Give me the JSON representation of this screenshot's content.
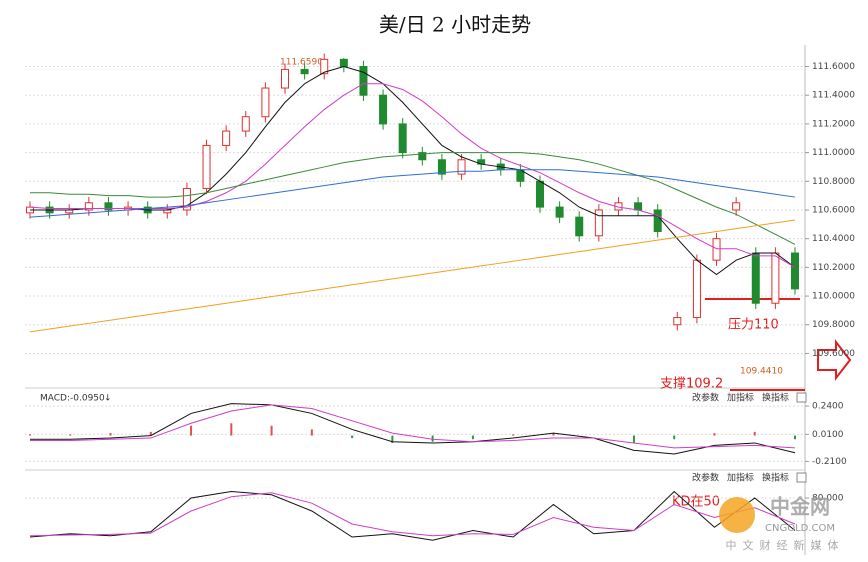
{
  "chart_data": {
    "type": "candlestick",
    "title": "美/日 2 小时走势",
    "ylim": [
      109.38,
      111.75
    ],
    "yticks": [
      {
        "value": 111.6,
        "label": "111.6000"
      },
      {
        "value": 111.4,
        "label": "111.4000"
      },
      {
        "value": 111.2,
        "label": "111.2000"
      },
      {
        "value": 111.0,
        "label": "111.0000"
      },
      {
        "value": 110.8,
        "label": "110.8000"
      },
      {
        "value": 110.6,
        "label": "110.6000"
      },
      {
        "value": 110.4,
        "label": "110.4000"
      },
      {
        "value": 110.2,
        "label": "110.2000"
      },
      {
        "value": 110.0,
        "label": "110.0000"
      },
      {
        "value": 109.8,
        "label": "109.8000"
      },
      {
        "value": 109.6,
        "label": "109.6000"
      }
    ],
    "grid": true,
    "candles": {
      "open": [
        110.58,
        110.62,
        110.58,
        110.6,
        110.65,
        110.6,
        110.62,
        110.58,
        110.6,
        110.75,
        111.05,
        111.15,
        111.25,
        111.45,
        111.58,
        111.55,
        111.65,
        111.6,
        111.4,
        111.2,
        111.0,
        110.95,
        110.85,
        110.95,
        110.92,
        110.88,
        110.8,
        110.62,
        110.55,
        110.42,
        110.6,
        110.65,
        110.6,
        109.8,
        109.85,
        110.25,
        110.6,
        110.3,
        109.95,
        110.3
      ],
      "high": [
        110.66,
        110.66,
        110.64,
        110.69,
        110.69,
        110.66,
        110.66,
        110.64,
        110.79,
        111.09,
        111.19,
        111.29,
        111.49,
        111.62,
        111.62,
        111.69,
        111.66,
        111.64,
        111.44,
        111.24,
        111.04,
        110.99,
        110.99,
        110.99,
        110.96,
        110.92,
        110.84,
        110.66,
        110.59,
        110.64,
        110.69,
        110.69,
        110.64,
        109.89,
        110.29,
        110.44,
        110.69,
        110.34,
        110.34,
        110.34
      ],
      "low": [
        110.54,
        110.54,
        110.54,
        110.56,
        110.56,
        110.56,
        110.54,
        110.54,
        110.56,
        110.71,
        111.01,
        111.11,
        111.21,
        111.41,
        111.51,
        111.51,
        111.56,
        111.36,
        111.16,
        110.96,
        110.91,
        110.81,
        110.81,
        110.88,
        110.84,
        110.76,
        110.58,
        110.51,
        110.38,
        110.38,
        110.56,
        110.56,
        110.41,
        109.76,
        109.81,
        110.21,
        110.56,
        109.91,
        109.91,
        110.01
      ],
      "close": [
        110.62,
        110.58,
        110.6,
        110.65,
        110.6,
        110.62,
        110.58,
        110.6,
        110.75,
        111.05,
        111.15,
        111.25,
        111.45,
        111.58,
        111.55,
        111.65,
        111.6,
        111.4,
        111.2,
        111.0,
        110.95,
        110.85,
        110.95,
        110.92,
        110.88,
        110.8,
        110.62,
        110.55,
        110.42,
        110.6,
        110.65,
        110.6,
        110.45,
        109.85,
        110.25,
        110.4,
        110.65,
        109.95,
        110.3,
        110.05
      ],
      "up_color": "#e03030",
      "down_color": "#1f8a2e"
    },
    "series": [
      {
        "color": "#111111",
        "values": [
          110.6,
          110.6,
          110.6,
          110.61,
          110.61,
          110.61,
          110.6,
          110.6,
          110.63,
          110.72,
          110.85,
          111.0,
          111.18,
          111.35,
          111.48,
          111.56,
          111.6,
          111.56,
          111.48,
          111.35,
          111.2,
          111.05,
          110.97,
          110.92,
          110.9,
          110.88,
          110.8,
          110.72,
          110.62,
          110.56,
          110.56,
          110.56,
          110.56,
          110.4,
          110.25,
          110.15,
          110.25,
          110.3,
          110.3,
          110.2
        ]
      },
      {
        "color": "#d23cc8",
        "values": [
          110.62,
          110.61,
          110.61,
          110.61,
          110.61,
          110.61,
          110.61,
          110.61,
          110.62,
          110.66,
          110.72,
          110.8,
          110.92,
          111.05,
          111.18,
          111.3,
          111.4,
          111.48,
          111.48,
          111.44,
          111.36,
          111.25,
          111.13,
          111.03,
          110.96,
          110.91,
          110.86,
          110.79,
          110.72,
          110.66,
          110.62,
          110.6,
          110.56,
          110.48,
          110.4,
          110.33,
          110.33,
          110.28,
          110.28,
          110.2
        ]
      },
      {
        "color": "#3a8a3a",
        "values": [
          110.72,
          110.72,
          110.71,
          110.71,
          110.7,
          110.7,
          110.69,
          110.69,
          110.7,
          110.72,
          110.75,
          110.78,
          110.81,
          110.84,
          110.87,
          110.9,
          110.93,
          110.95,
          110.97,
          110.98,
          110.99,
          111.0,
          111.0,
          111.0,
          111.0,
          111.0,
          110.99,
          110.97,
          110.95,
          110.92,
          110.88,
          110.84,
          110.8,
          110.74,
          110.68,
          110.62,
          110.57,
          110.5,
          110.43,
          110.36
        ]
      },
      {
        "color": "#2f6fd0",
        "values": [
          110.55,
          110.56,
          110.57,
          110.58,
          110.59,
          110.6,
          110.61,
          110.62,
          110.63,
          110.65,
          110.67,
          110.69,
          110.71,
          110.73,
          110.75,
          110.77,
          110.79,
          110.81,
          110.83,
          110.84,
          110.85,
          110.86,
          110.87,
          110.87,
          110.88,
          110.88,
          110.88,
          110.88,
          110.87,
          110.86,
          110.85,
          110.84,
          110.83,
          110.81,
          110.79,
          110.77,
          110.75,
          110.73,
          110.71,
          110.69
        ]
      },
      {
        "color": "#f0a020",
        "values": [
          109.75,
          109.77,
          109.79,
          109.81,
          109.83,
          109.85,
          109.87,
          109.89,
          109.91,
          109.93,
          109.95,
          109.97,
          109.99,
          110.01,
          110.03,
          110.05,
          110.07,
          110.09,
          110.11,
          110.13,
          110.15,
          110.17,
          110.19,
          110.21,
          110.23,
          110.25,
          110.27,
          110.29,
          110.31,
          110.33,
          110.35,
          110.37,
          110.39,
          110.41,
          110.43,
          110.45,
          110.47,
          110.49,
          110.51,
          110.53
        ]
      }
    ],
    "annotations": {
      "high": "111.6590",
      "low": "109.4410",
      "resistance": "压力110",
      "support": "支撑109.2",
      "kd_note": "KD在50"
    },
    "macd": {
      "label": "MACD:-0.0950",
      "arrow": "↓",
      "ylim": [
        -0.28,
        0.33
      ],
      "yticks": [
        {
          "value": 0.24,
          "label": "0.2400"
        },
        {
          "value": 0.01,
          "label": "0.0100"
        },
        {
          "value": -0.21,
          "label": "-0.2100"
        }
      ],
      "hist": [
        0.01,
        0.01,
        0.02,
        0.03,
        0.08,
        0.1,
        0.08,
        0.05,
        -0.02,
        -0.06,
        -0.05,
        -0.03,
        0.01,
        0.02,
        0.0,
        -0.06,
        -0.03,
        0.02,
        0.03,
        -0.03
      ],
      "dif": [
        -0.03,
        -0.03,
        -0.02,
        0.0,
        0.18,
        0.26,
        0.25,
        0.18,
        0.05,
        -0.05,
        -0.06,
        -0.05,
        -0.02,
        0.02,
        -0.02,
        -0.12,
        -0.15,
        -0.08,
        -0.06,
        -0.14
      ],
      "dea": [
        -0.04,
        -0.04,
        -0.03,
        -0.02,
        0.1,
        0.2,
        0.25,
        0.22,
        0.12,
        0.02,
        -0.03,
        -0.05,
        -0.04,
        -0.02,
        -0.02,
        -0.06,
        -0.1,
        -0.09,
        -0.08,
        -0.1
      ]
    },
    "kd": {
      "ylim": [
        0,
        100
      ],
      "yticks": [
        {
          "value": 80,
          "label": "80.000"
        }
      ],
      "k": [
        20,
        25,
        22,
        28,
        80,
        90,
        85,
        60,
        20,
        25,
        15,
        30,
        20,
        70,
        25,
        30,
        90,
        35,
        80,
        30
      ],
      "d": [
        22,
        23,
        24,
        26,
        60,
        82,
        88,
        72,
        40,
        28,
        22,
        25,
        24,
        50,
        35,
        30,
        70,
        50,
        65,
        40
      ]
    },
    "buttons": [
      "改参数",
      "加指标",
      "换指标"
    ],
    "watermark": {
      "name": "中金网",
      "site": "CNGOLD.COM",
      "slogan": "中文财经新媒体"
    }
  }
}
